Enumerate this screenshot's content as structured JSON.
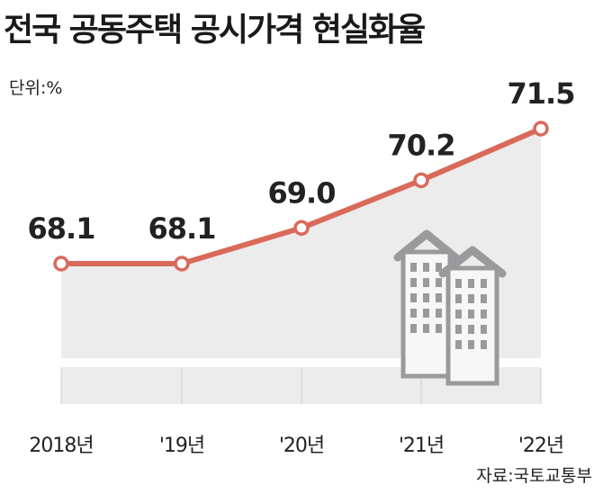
{
  "title": "전국 공동주택 공시가격 현실화율",
  "unit_label": "단위:%",
  "source_label": "자료:국토교통부",
  "colors": {
    "line": "#d96a5a",
    "area": "#ececed",
    "band": "#ffffff",
    "building": "#9a9a9c"
  },
  "chart_data": {
    "type": "line",
    "title": "전국 공동주택 공시가격 현실화율",
    "xlabel": "",
    "ylabel": "",
    "unit": "%",
    "categories": [
      "2018년",
      "'19년",
      "'20년",
      "'21년",
      "'22년"
    ],
    "values": [
      68.1,
      68.1,
      69.0,
      70.2,
      71.5
    ],
    "data_labels": [
      "68.1",
      "68.1",
      "69.0",
      "70.2",
      "71.5"
    ],
    "ylim": [
      65.2,
      72.0
    ],
    "grid": false,
    "legend": "none",
    "decoration": "apartment-buildings-icon"
  }
}
